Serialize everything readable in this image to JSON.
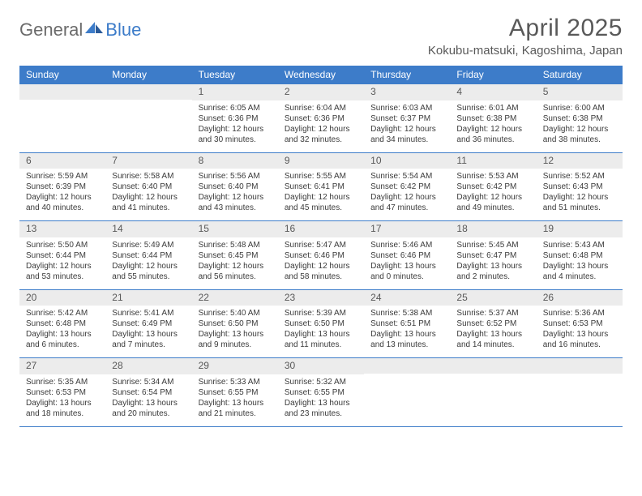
{
  "brand": {
    "general": "General",
    "blue": "Blue"
  },
  "title": {
    "month": "April 2025",
    "location": "Kokubu-matsuki, Kagoshima, Japan"
  },
  "colors": {
    "header_bg": "#3d7cc9",
    "header_text": "#ffffff",
    "num_bg": "#ececec",
    "text": "#3b3b3b",
    "title_text": "#595959",
    "logo_gray": "#6b6b6b",
    "logo_blue": "#3d7cc9",
    "border": "#3d7cc9"
  },
  "day_labels": [
    "Sunday",
    "Monday",
    "Tuesday",
    "Wednesday",
    "Thursday",
    "Friday",
    "Saturday"
  ],
  "weeks": [
    [
      {
        "n": "",
        "sunrise": "",
        "sunset": "",
        "daylight": ""
      },
      {
        "n": "",
        "sunrise": "",
        "sunset": "",
        "daylight": ""
      },
      {
        "n": "1",
        "sunrise": "Sunrise: 6:05 AM",
        "sunset": "Sunset: 6:36 PM",
        "daylight": "Daylight: 12 hours and 30 minutes."
      },
      {
        "n": "2",
        "sunrise": "Sunrise: 6:04 AM",
        "sunset": "Sunset: 6:36 PM",
        "daylight": "Daylight: 12 hours and 32 minutes."
      },
      {
        "n": "3",
        "sunrise": "Sunrise: 6:03 AM",
        "sunset": "Sunset: 6:37 PM",
        "daylight": "Daylight: 12 hours and 34 minutes."
      },
      {
        "n": "4",
        "sunrise": "Sunrise: 6:01 AM",
        "sunset": "Sunset: 6:38 PM",
        "daylight": "Daylight: 12 hours and 36 minutes."
      },
      {
        "n": "5",
        "sunrise": "Sunrise: 6:00 AM",
        "sunset": "Sunset: 6:38 PM",
        "daylight": "Daylight: 12 hours and 38 minutes."
      }
    ],
    [
      {
        "n": "6",
        "sunrise": "Sunrise: 5:59 AM",
        "sunset": "Sunset: 6:39 PM",
        "daylight": "Daylight: 12 hours and 40 minutes."
      },
      {
        "n": "7",
        "sunrise": "Sunrise: 5:58 AM",
        "sunset": "Sunset: 6:40 PM",
        "daylight": "Daylight: 12 hours and 41 minutes."
      },
      {
        "n": "8",
        "sunrise": "Sunrise: 5:56 AM",
        "sunset": "Sunset: 6:40 PM",
        "daylight": "Daylight: 12 hours and 43 minutes."
      },
      {
        "n": "9",
        "sunrise": "Sunrise: 5:55 AM",
        "sunset": "Sunset: 6:41 PM",
        "daylight": "Daylight: 12 hours and 45 minutes."
      },
      {
        "n": "10",
        "sunrise": "Sunrise: 5:54 AM",
        "sunset": "Sunset: 6:42 PM",
        "daylight": "Daylight: 12 hours and 47 minutes."
      },
      {
        "n": "11",
        "sunrise": "Sunrise: 5:53 AM",
        "sunset": "Sunset: 6:42 PM",
        "daylight": "Daylight: 12 hours and 49 minutes."
      },
      {
        "n": "12",
        "sunrise": "Sunrise: 5:52 AM",
        "sunset": "Sunset: 6:43 PM",
        "daylight": "Daylight: 12 hours and 51 minutes."
      }
    ],
    [
      {
        "n": "13",
        "sunrise": "Sunrise: 5:50 AM",
        "sunset": "Sunset: 6:44 PM",
        "daylight": "Daylight: 12 hours and 53 minutes."
      },
      {
        "n": "14",
        "sunrise": "Sunrise: 5:49 AM",
        "sunset": "Sunset: 6:44 PM",
        "daylight": "Daylight: 12 hours and 55 minutes."
      },
      {
        "n": "15",
        "sunrise": "Sunrise: 5:48 AM",
        "sunset": "Sunset: 6:45 PM",
        "daylight": "Daylight: 12 hours and 56 minutes."
      },
      {
        "n": "16",
        "sunrise": "Sunrise: 5:47 AM",
        "sunset": "Sunset: 6:46 PM",
        "daylight": "Daylight: 12 hours and 58 minutes."
      },
      {
        "n": "17",
        "sunrise": "Sunrise: 5:46 AM",
        "sunset": "Sunset: 6:46 PM",
        "daylight": "Daylight: 13 hours and 0 minutes."
      },
      {
        "n": "18",
        "sunrise": "Sunrise: 5:45 AM",
        "sunset": "Sunset: 6:47 PM",
        "daylight": "Daylight: 13 hours and 2 minutes."
      },
      {
        "n": "19",
        "sunrise": "Sunrise: 5:43 AM",
        "sunset": "Sunset: 6:48 PM",
        "daylight": "Daylight: 13 hours and 4 minutes."
      }
    ],
    [
      {
        "n": "20",
        "sunrise": "Sunrise: 5:42 AM",
        "sunset": "Sunset: 6:48 PM",
        "daylight": "Daylight: 13 hours and 6 minutes."
      },
      {
        "n": "21",
        "sunrise": "Sunrise: 5:41 AM",
        "sunset": "Sunset: 6:49 PM",
        "daylight": "Daylight: 13 hours and 7 minutes."
      },
      {
        "n": "22",
        "sunrise": "Sunrise: 5:40 AM",
        "sunset": "Sunset: 6:50 PM",
        "daylight": "Daylight: 13 hours and 9 minutes."
      },
      {
        "n": "23",
        "sunrise": "Sunrise: 5:39 AM",
        "sunset": "Sunset: 6:50 PM",
        "daylight": "Daylight: 13 hours and 11 minutes."
      },
      {
        "n": "24",
        "sunrise": "Sunrise: 5:38 AM",
        "sunset": "Sunset: 6:51 PM",
        "daylight": "Daylight: 13 hours and 13 minutes."
      },
      {
        "n": "25",
        "sunrise": "Sunrise: 5:37 AM",
        "sunset": "Sunset: 6:52 PM",
        "daylight": "Daylight: 13 hours and 14 minutes."
      },
      {
        "n": "26",
        "sunrise": "Sunrise: 5:36 AM",
        "sunset": "Sunset: 6:53 PM",
        "daylight": "Daylight: 13 hours and 16 minutes."
      }
    ],
    [
      {
        "n": "27",
        "sunrise": "Sunrise: 5:35 AM",
        "sunset": "Sunset: 6:53 PM",
        "daylight": "Daylight: 13 hours and 18 minutes."
      },
      {
        "n": "28",
        "sunrise": "Sunrise: 5:34 AM",
        "sunset": "Sunset: 6:54 PM",
        "daylight": "Daylight: 13 hours and 20 minutes."
      },
      {
        "n": "29",
        "sunrise": "Sunrise: 5:33 AM",
        "sunset": "Sunset: 6:55 PM",
        "daylight": "Daylight: 13 hours and 21 minutes."
      },
      {
        "n": "30",
        "sunrise": "Sunrise: 5:32 AM",
        "sunset": "Sunset: 6:55 PM",
        "daylight": "Daylight: 13 hours and 23 minutes."
      },
      {
        "n": "",
        "sunrise": "",
        "sunset": "",
        "daylight": ""
      },
      {
        "n": "",
        "sunrise": "",
        "sunset": "",
        "daylight": ""
      },
      {
        "n": "",
        "sunrise": "",
        "sunset": "",
        "daylight": ""
      }
    ]
  ]
}
